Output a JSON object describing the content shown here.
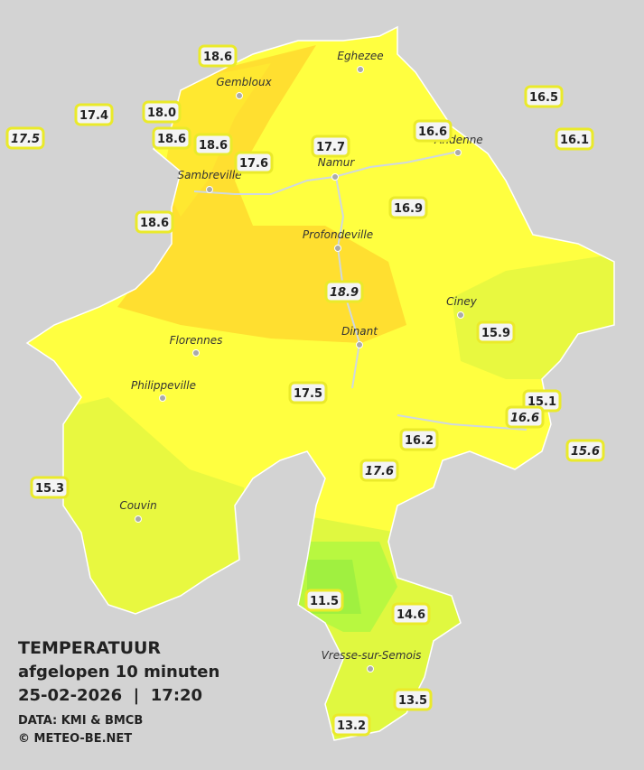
{
  "legend": {
    "title": "TEMPERATUUR",
    "subtitle": "afgelopen 10 minuten",
    "datetime": "25-02-2026  |  17:20",
    "source": "DATA: KMI & BMCB",
    "copyright": "© METEO-BE.NET"
  },
  "cities": [
    "Eghezee",
    "Gembloux",
    "Andenne",
    "Namur",
    "Sambreville",
    "Profondeville",
    "Ciney",
    "Dinant",
    "Florennes",
    "Philippeville",
    "Couvin",
    "Vresse-sur-Semois"
  ],
  "stations": [
    {
      "value": 18.6,
      "italic": false
    },
    {
      "value": 17.4,
      "italic": false
    },
    {
      "value": 18.0,
      "label": "18.0",
      "italic": false
    },
    {
      "value": 17.5,
      "italic": true
    },
    {
      "value": 18.6,
      "italic": false
    },
    {
      "value": 18.6,
      "italic": false
    },
    {
      "value": 17.6,
      "italic": false
    },
    {
      "value": 17.7,
      "italic": false
    },
    {
      "value": 16.6,
      "italic": false
    },
    {
      "value": 16.5,
      "italic": false
    },
    {
      "value": 16.1,
      "italic": false
    },
    {
      "value": 18.6,
      "italic": false
    },
    {
      "value": 16.9,
      "italic": false
    },
    {
      "value": 18.9,
      "italic": true
    },
    {
      "value": 15.9,
      "italic": false
    },
    {
      "value": 17.5,
      "italic": false
    },
    {
      "value": 15.1,
      "italic": false
    },
    {
      "value": 16.6,
      "italic": true
    },
    {
      "value": 16.2,
      "italic": false
    },
    {
      "value": 15.6,
      "italic": true
    },
    {
      "value": 17.6,
      "italic": true
    },
    {
      "value": 15.3,
      "italic": false
    },
    {
      "value": 11.5,
      "italic": false
    },
    {
      "value": 14.6,
      "italic": false
    },
    {
      "value": 13.5,
      "italic": false
    },
    {
      "value": 13.2,
      "italic": false
    }
  ]
}
